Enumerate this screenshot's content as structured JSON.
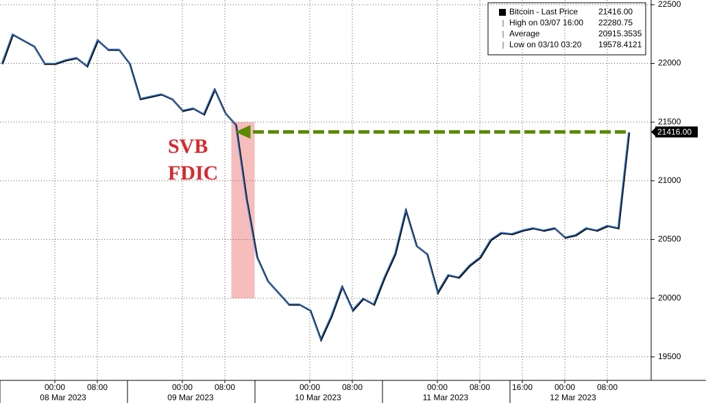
{
  "chart_data": {
    "type": "line",
    "categories": [
      "07 Mar 2023 14:00",
      "07 Mar 2023 16:00",
      "07 Mar 2023 18:00",
      "07 Mar 2023 20:00",
      "07 Mar 2023 22:00",
      "08 Mar 2023 00:00",
      "08 Mar 2023 02:00",
      "08 Mar 2023 04:00",
      "08 Mar 2023 06:00",
      "08 Mar 2023 08:00",
      "08 Mar 2023 10:00",
      "08 Mar 2023 12:00",
      "08 Mar 2023 14:00",
      "08 Mar 2023 16:00",
      "08 Mar 2023 18:00",
      "08 Mar 2023 20:00",
      "08 Mar 2023 22:00",
      "09 Mar 2023 00:00",
      "09 Mar 2023 02:00",
      "09 Mar 2023 04:00",
      "09 Mar 2023 06:00",
      "09 Mar 2023 08:00",
      "09 Mar 2023 10:00",
      "09 Mar 2023 12:00",
      "09 Mar 2023 14:00",
      "09 Mar 2023 16:00",
      "09 Mar 2023 18:00",
      "09 Mar 2023 20:00",
      "09 Mar 2023 22:00",
      "10 Mar 2023 00:00",
      "10 Mar 2023 02:00",
      "10 Mar 2023 04:00",
      "10 Mar 2023 06:00",
      "10 Mar 2023 08:00",
      "10 Mar 2023 10:00",
      "10 Mar 2023 12:00",
      "10 Mar 2023 14:00",
      "10 Mar 2023 16:00",
      "10 Mar 2023 18:00",
      "10 Mar 2023 20:00",
      "10 Mar 2023 22:00",
      "11 Mar 2023 00:00",
      "11 Mar 2023 02:00",
      "11 Mar 2023 04:00",
      "11 Mar 2023 06:00",
      "11 Mar 2023 08:00",
      "11 Mar 2023 10:00",
      "11 Mar 2023 12:00",
      "11 Mar 2023 14:00",
      "11 Mar 2023 16:00",
      "11 Mar 2023 18:00",
      "11 Mar 2023 20:00",
      "11 Mar 2023 22:00",
      "12 Mar 2023 00:00",
      "12 Mar 2023 02:00",
      "12 Mar 2023 04:00",
      "12 Mar 2023 06:00",
      "12 Mar 2023 08:00",
      "12 Mar 2023 10:00",
      "12 Mar 2023 12:00"
    ],
    "series": [
      {
        "name": "Bitcoin - Last Price",
        "color": "#2f6fc9",
        "values": [
          22000,
          22250,
          22200,
          22150,
          22000,
          22000,
          22030,
          22050,
          21980,
          22200,
          22120,
          22120,
          22000,
          21700,
          21720,
          21740,
          21700,
          21600,
          21620,
          21570,
          21780,
          21580,
          21480,
          20850,
          20350,
          20150,
          20050,
          19950,
          19950,
          19900,
          19650,
          19850,
          20100,
          19900,
          20000,
          19950,
          20180,
          20380,
          20750,
          20450,
          20380,
          20050,
          20200,
          20180,
          20280,
          20350,
          20500,
          20560,
          20550,
          20580,
          20600,
          20580,
          20600,
          20520,
          20540,
          20600,
          20580,
          20620,
          20600,
          21416
        ]
      }
    ],
    "ylim": [
      19300,
      22540
    ],
    "yticks": [
      19500,
      20000,
      20500,
      21000,
      21500,
      22000,
      22500
    ],
    "xticks": [
      {
        "value": "08 Mar 2023 00:00",
        "label": "00:00"
      },
      {
        "value": "08 Mar 2023 08:00",
        "label": "08:00"
      },
      {
        "value": "09 Mar 2023 00:00",
        "label": "00:00"
      },
      {
        "value": "09 Mar 2023 08:00",
        "label": "08:00"
      },
      {
        "value": "10 Mar 2023 00:00",
        "label": "00:00"
      },
      {
        "value": "10 Mar 2023 08:00",
        "label": "08:00"
      },
      {
        "value": "11 Mar 2023 00:00",
        "label": "00:00"
      },
      {
        "value": "11 Mar 2023 08:00",
        "label": "08:00"
      },
      {
        "value": "11 Mar 2023 16:00",
        "label": "16:00"
      },
      {
        "value": "12 Mar 2023 00:00",
        "label": "00:00"
      },
      {
        "value": "12 Mar 2023 08:00",
        "label": "08:00"
      }
    ],
    "date_labels": [
      {
        "value": "08 Mar 2023 00:00",
        "label": "08 Mar 2023"
      },
      {
        "value": "09 Mar 2023 00:00",
        "label": "09 Mar 2023"
      },
      {
        "value": "10 Mar 2023 00:00",
        "label": "10 Mar 2023"
      },
      {
        "value": "11 Mar 2023 00:00",
        "label": "11 Mar 2023"
      },
      {
        "value": "12 Mar 2023 00:00",
        "label": "12 Mar 2023"
      }
    ],
    "grid": true,
    "last_price_label": "21416.00",
    "legend": [
      {
        "label": "Bitcoin - Last Price",
        "value": "21416.00"
      },
      {
        "label": "High on 03/07 16:00",
        "value": "22280.75"
      },
      {
        "label": "Average",
        "value": "20915.3535"
      },
      {
        "label": "Low on 03/10 03:20",
        "value": "19578.4121"
      }
    ],
    "annotations": [
      "SVB",
      "FDIC"
    ],
    "highlight": {
      "x": [
        "09 Mar 2023 10:00",
        "09 Mar 2023 14:00"
      ],
      "y": [
        20000,
        21500
      ],
      "color": "#f4a6a6"
    },
    "arrow": {
      "from": "12 Mar 2023 12:00",
      "to": "09 Mar 2023 10:00",
      "value": 21416,
      "color": "#5a8a00"
    }
  }
}
